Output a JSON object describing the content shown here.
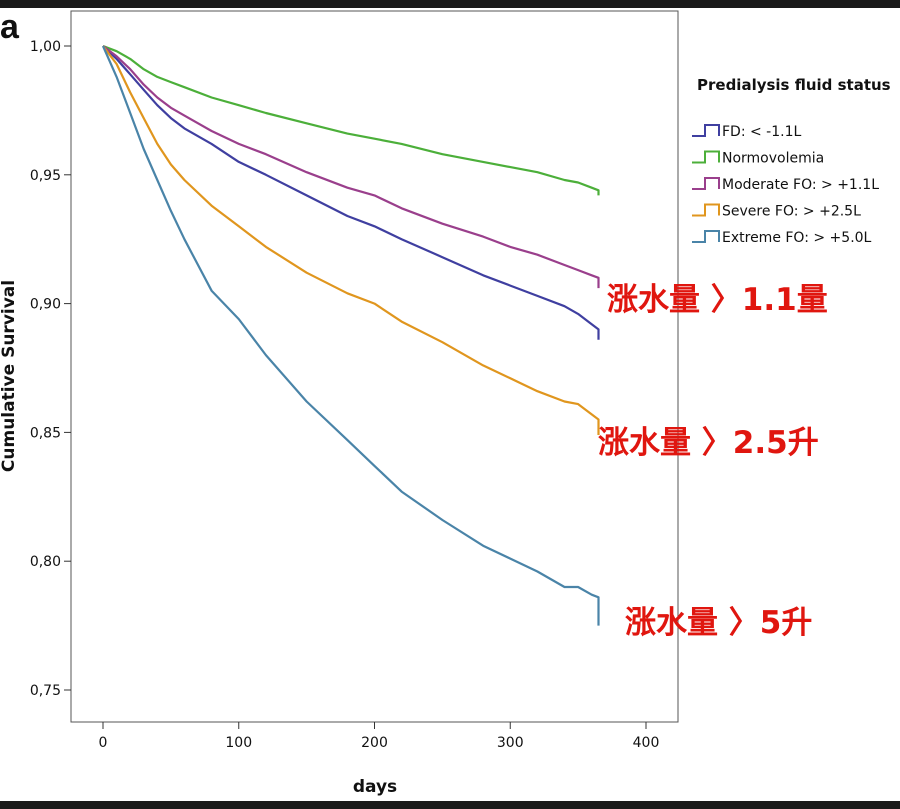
{
  "panel_label": "a",
  "chart_data": {
    "type": "line",
    "title": "",
    "xlabel": "days",
    "ylabel": "Cumulative Survival",
    "xlim": [
      -20,
      420
    ],
    "ylim": [
      0.74,
      1.015
    ],
    "x_ticks": [
      0,
      100,
      200,
      300,
      400
    ],
    "x_tick_labels": [
      "0",
      "100",
      "200",
      "300",
      "400"
    ],
    "y_ticks": [
      0.75,
      0.8,
      0.85,
      0.9,
      0.95,
      1.0
    ],
    "y_tick_labels": [
      "0,75",
      "0,80",
      "0,85",
      "0,90",
      "0,95",
      "1,00"
    ],
    "grid": false,
    "legend": {
      "title": "Predialysis fluid status",
      "position": "top-right"
    },
    "series": [
      {
        "name": "FD: < -1.1L",
        "color": "#3f3fa0",
        "x": [
          0,
          10,
          20,
          30,
          40,
          50,
          60,
          80,
          100,
          120,
          150,
          180,
          200,
          220,
          250,
          280,
          300,
          320,
          340,
          350,
          360,
          365
        ],
        "y": [
          1.0,
          0.995,
          0.989,
          0.983,
          0.977,
          0.972,
          0.968,
          0.962,
          0.955,
          0.95,
          0.942,
          0.934,
          0.93,
          0.925,
          0.918,
          0.911,
          0.907,
          0.903,
          0.899,
          0.896,
          0.892,
          0.89
        ],
        "end_drop": 0.886
      },
      {
        "name": "Normovolemia",
        "color": "#4caf3a",
        "x": [
          0,
          10,
          20,
          30,
          40,
          50,
          60,
          80,
          100,
          120,
          150,
          180,
          200,
          220,
          250,
          280,
          300,
          320,
          340,
          350,
          360,
          365
        ],
        "y": [
          1.0,
          0.998,
          0.995,
          0.991,
          0.988,
          0.986,
          0.984,
          0.98,
          0.977,
          0.974,
          0.97,
          0.966,
          0.964,
          0.962,
          0.958,
          0.955,
          0.953,
          0.951,
          0.948,
          0.947,
          0.945,
          0.944
        ],
        "end_drop": 0.942
      },
      {
        "name": "Moderate FO: > +1.1L",
        "color": "#9a3f8c",
        "x": [
          0,
          10,
          20,
          30,
          40,
          50,
          60,
          80,
          100,
          120,
          150,
          180,
          200,
          220,
          250,
          280,
          300,
          320,
          340,
          350,
          360,
          365
        ],
        "y": [
          1.0,
          0.996,
          0.991,
          0.985,
          0.98,
          0.976,
          0.973,
          0.967,
          0.962,
          0.958,
          0.951,
          0.945,
          0.942,
          0.937,
          0.931,
          0.926,
          0.922,
          0.919,
          0.915,
          0.913,
          0.911,
          0.91
        ],
        "end_drop": 0.906
      },
      {
        "name": "Severe FO: > +2.5L",
        "color": "#e0961e",
        "x": [
          0,
          10,
          20,
          30,
          40,
          50,
          60,
          80,
          100,
          120,
          150,
          180,
          200,
          220,
          250,
          280,
          300,
          320,
          340,
          350,
          360,
          365
        ],
        "y": [
          1.0,
          0.993,
          0.982,
          0.972,
          0.962,
          0.954,
          0.948,
          0.938,
          0.93,
          0.922,
          0.912,
          0.904,
          0.9,
          0.893,
          0.885,
          0.876,
          0.871,
          0.866,
          0.862,
          0.861,
          0.857,
          0.855
        ],
        "end_drop": 0.849
      },
      {
        "name": "Extreme FO: > +5.0L",
        "color": "#4a84a8",
        "x": [
          0,
          10,
          20,
          30,
          40,
          50,
          60,
          80,
          100,
          120,
          150,
          180,
          200,
          220,
          250,
          280,
          300,
          320,
          340,
          350,
          360,
          365
        ],
        "y": [
          1.0,
          0.988,
          0.974,
          0.96,
          0.948,
          0.936,
          0.925,
          0.905,
          0.894,
          0.88,
          0.862,
          0.847,
          0.837,
          0.827,
          0.816,
          0.806,
          0.801,
          0.796,
          0.79,
          0.79,
          0.787,
          0.786
        ],
        "end_drop": 0.775
      }
    ],
    "annotations": [
      {
        "text": "涨水量 〉1.1量",
        "color": "#e0160f",
        "near_series": "Moderate FO: > +1.1L"
      },
      {
        "text": "涨水量 〉2.5升",
        "color": "#e0160f",
        "near_series": "Severe FO: > +2.5L"
      },
      {
        "text": "涨水量 〉5升",
        "color": "#e0160f",
        "near_series": "Extreme FO: > +5.0L"
      }
    ]
  }
}
